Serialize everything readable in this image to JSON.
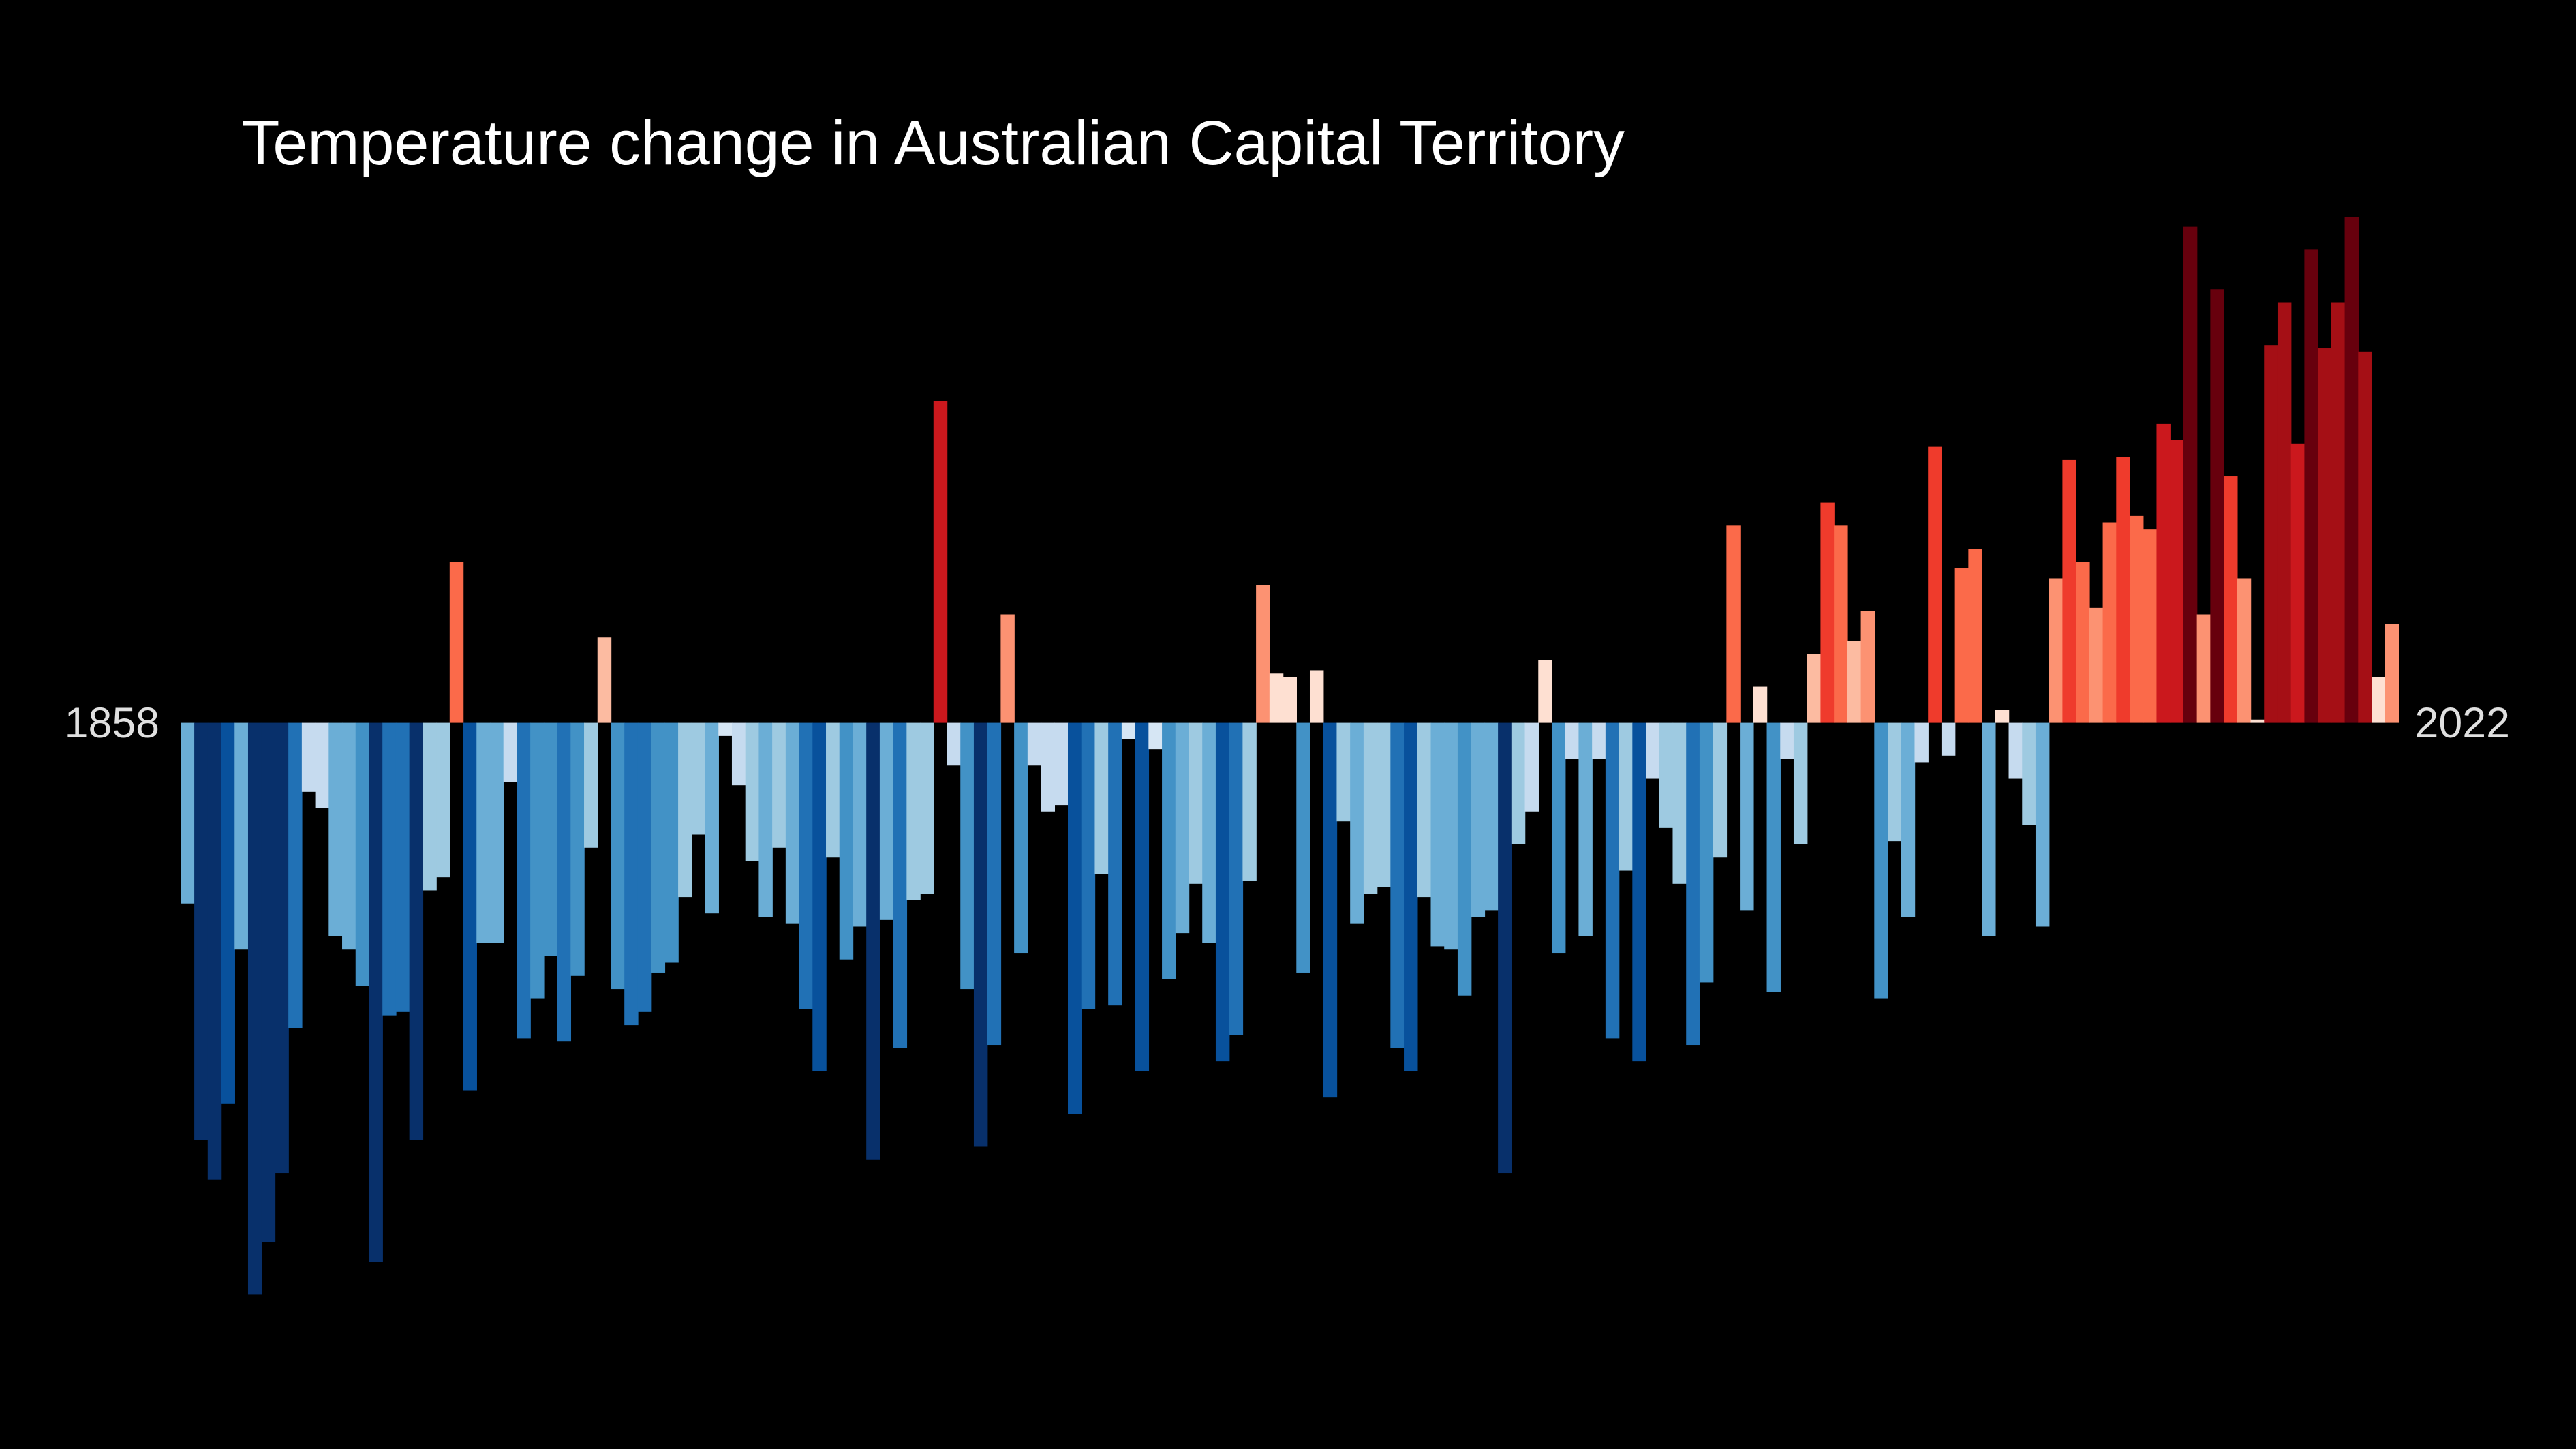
{
  "chart_data": {
    "type": "bar",
    "title": "Temperature change in Australian Capital Territory",
    "categories": [
      "1858",
      null,
      null,
      null,
      null,
      null,
      null,
      null,
      null,
      null,
      null,
      null,
      null,
      null,
      null,
      null,
      null,
      null,
      null,
      null,
      null,
      null,
      null,
      null,
      null,
      null,
      null,
      null,
      null,
      null,
      null,
      null,
      null,
      null,
      null,
      null,
      null,
      null,
      null,
      null,
      null,
      null,
      null,
      null,
      null,
      null,
      null,
      null,
      null,
      null,
      null,
      null,
      null,
      null,
      null,
      null,
      null,
      null,
      null,
      null,
      null,
      null,
      null,
      null,
      null,
      null,
      null,
      null,
      null,
      null,
      null,
      null,
      null,
      null,
      null,
      null,
      null,
      null,
      null,
      null,
      null,
      null,
      null,
      null,
      null,
      null,
      null,
      null,
      null,
      null,
      null,
      null,
      null,
      null,
      null,
      null,
      null,
      null,
      null,
      null,
      null,
      null,
      null,
      null,
      null,
      null,
      null,
      null,
      null,
      null,
      null,
      null,
      null,
      null,
      null,
      null,
      null,
      null,
      null,
      null,
      null,
      null,
      null,
      null,
      null,
      null,
      null,
      null,
      null,
      null,
      null,
      null,
      null,
      null,
      null,
      null,
      null,
      null,
      null,
      null,
      null,
      null,
      null,
      null,
      null,
      null,
      null,
      null,
      null,
      null,
      null,
      null,
      null,
      null,
      null,
      null,
      null,
      null,
      null,
      null,
      null,
      null,
      null,
      null,
      "2022"
    ],
    "values": [
      -0.55,
      -1.27,
      -1.39,
      -1.16,
      -0.69,
      -1.74,
      -1.58,
      -1.37,
      -0.93,
      -0.21,
      -0.26,
      -0.65,
      -0.69,
      -0.8,
      -1.64,
      -0.89,
      -0.88,
      -1.27,
      -0.51,
      -0.47,
      0.49,
      -1.12,
      -0.67,
      -0.67,
      -0.18,
      -0.96,
      -0.84,
      -0.71,
      -0.97,
      -0.77,
      -0.38,
      0.26,
      -0.81,
      -0.92,
      -0.88,
      -0.76,
      -0.73,
      -0.53,
      -0.34,
      -0.58,
      -0.04,
      -0.19,
      -0.42,
      -0.59,
      -0.38,
      -0.61,
      -0.87,
      -1.06,
      -0.41,
      -0.72,
      -0.62,
      -1.33,
      -0.6,
      -0.99,
      -0.54,
      -0.52,
      0.98,
      -0.13,
      -0.81,
      -1.29,
      -0.98,
      0.33,
      -0.7,
      -0.13,
      -0.27,
      -0.25,
      -1.19,
      -0.87,
      -0.46,
      -0.86,
      -0.05,
      -1.06,
      -0.08,
      -0.78,
      -0.64,
      -0.49,
      -0.67,
      -1.03,
      -0.95,
      -0.48,
      0.42,
      0.15,
      0.14,
      -0.76,
      0.16,
      -1.14,
      -0.3,
      -0.61,
      -0.52,
      -0.5,
      -0.99,
      -1.06,
      -0.53,
      -0.68,
      -0.69,
      -0.83,
      -0.59,
      -0.57,
      -1.37,
      -0.37,
      -0.27,
      0.19,
      -0.7,
      -0.11,
      -0.65,
      -0.11,
      -0.96,
      -0.45,
      -1.03,
      -0.17,
      -0.32,
      -0.49,
      -0.98,
      -0.79,
      -0.41,
      0.6,
      -0.57,
      0.11,
      -0.82,
      -0.11,
      -0.37,
      0.21,
      0.67,
      0.6,
      0.25,
      0.34,
      -0.84,
      -0.36,
      -0.59,
      -0.12,
      0.84,
      -0.1,
      0.47,
      0.53,
      -0.65,
      0.04,
      -0.17,
      -0.31,
      -0.62,
      0.44,
      0.8,
      0.49,
      0.35,
      0.61,
      0.81,
      0.63,
      0.59,
      0.91,
      0.86,
      1.51,
      0.33,
      1.32,
      0.75,
      0.44,
      0.01,
      1.15,
      1.28,
      0.85,
      1.44,
      1.14,
      1.28,
      1.54,
      1.13,
      0.14,
      0.3
    ],
    "ylim": [
      -2.21,
      2.2
    ]
  }
}
